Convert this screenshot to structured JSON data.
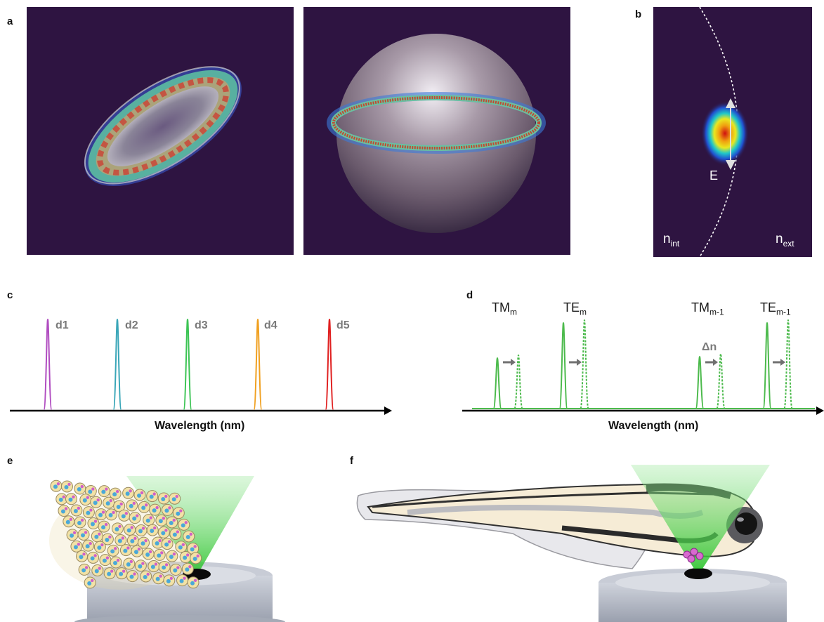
{
  "panels": {
    "a": {
      "letter": "a"
    },
    "b": {
      "letter": "b",
      "field_label": "E",
      "n_int_base": "n",
      "n_int_sub": "int",
      "n_ext_base": "n",
      "n_ext_sub": "ext"
    },
    "c": {
      "letter": "c",
      "xlabel": "Wavelength (nm)",
      "peaks": [
        {
          "label": "d1",
          "color": "#b04cc0"
        },
        {
          "label": "d2",
          "color": "#3aa6b8"
        },
        {
          "label": "d3",
          "color": "#3cc454"
        },
        {
          "label": "d4",
          "color": "#f0a020"
        },
        {
          "label": "d5",
          "color": "#e02020"
        }
      ]
    },
    "d": {
      "letter": "d",
      "xlabel": "Wavelength (nm)",
      "shift_label": "Δn",
      "modes": [
        {
          "base": "TM",
          "sub": "m"
        },
        {
          "base": "TE",
          "sub": "m"
        },
        {
          "base": "TM",
          "sub": "m-1"
        },
        {
          "base": "TE",
          "sub": "m-1"
        }
      ],
      "line_color": "#4cba4c"
    },
    "e": {
      "letter": "e"
    },
    "f": {
      "letter": "f"
    }
  },
  "colors": {
    "background_dark": "#2e1441",
    "laser_green": "#7de07d"
  }
}
